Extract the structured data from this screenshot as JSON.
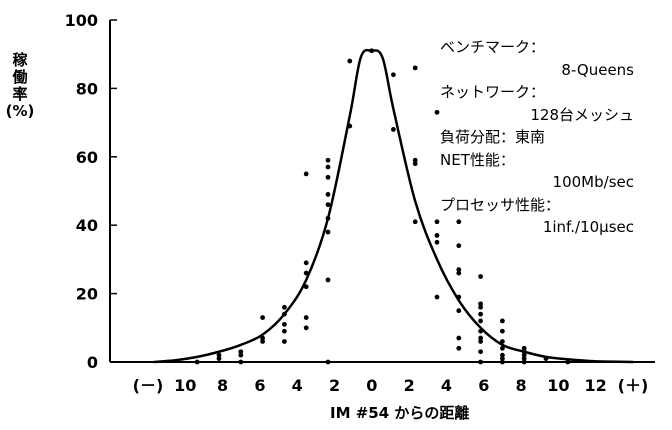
{
  "chart_data": {
    "type": "scatter",
    "title": "",
    "xlabel": "IM #54 からの距離",
    "ylabel": [
      "稼",
      "働",
      "率",
      "(%)"
    ],
    "x_ticks": [
      "(－)",
      "10",
      "8",
      "6",
      "4",
      "2",
      "0",
      "2",
      "4",
      "6",
      "8",
      "10",
      "12",
      "(＋)"
    ],
    "y_ticks": [
      "0",
      "20",
      "40",
      "60",
      "80",
      "100"
    ],
    "x_range": [
      -12,
      13
    ],
    "ylim": [
      0,
      100
    ],
    "grid": false,
    "annotations": [
      {
        "label": "ベンチマーク：",
        "value": "8-Queens"
      },
      {
        "label": "ネットワーク：",
        "value": "128台メッシュ"
      },
      {
        "label": "負荷分配：東南",
        "value": ""
      },
      {
        "label": "NET性能：",
        "value": "100Mb/sec"
      },
      {
        "label": "プロセッサ性能：",
        "value": "1inf./10μsec"
      }
    ],
    "series": [
      {
        "kind": "line",
        "x": [
          -10,
          -9,
          -8,
          -7,
          -6,
          -5,
          -4,
          -3,
          -2,
          -1,
          -0.5,
          0,
          0.5,
          1,
          2,
          3,
          4,
          5,
          6,
          7,
          8,
          9,
          10,
          11,
          12
        ],
        "y": [
          0,
          0.5,
          1.5,
          3,
          5,
          8,
          14,
          24,
          42,
          72,
          89,
          91,
          89,
          74,
          47,
          30,
          18,
          10,
          5,
          3,
          1.5,
          0.8,
          0.3,
          0.1,
          0
        ]
      },
      {
        "kind": "scatter",
        "points": [
          [
            -8,
            0
          ],
          [
            -7,
            1
          ],
          [
            -7,
            2
          ],
          [
            -6,
            0
          ],
          [
            -6,
            2
          ],
          [
            -6,
            3
          ],
          [
            -5,
            6
          ],
          [
            -5,
            7
          ],
          [
            -5,
            13
          ],
          [
            -4,
            6
          ],
          [
            -4,
            9
          ],
          [
            -4,
            11
          ],
          [
            -4,
            14
          ],
          [
            -4,
            16
          ],
          [
            -3,
            10
          ],
          [
            -3,
            13
          ],
          [
            -3,
            22
          ],
          [
            -3,
            26
          ],
          [
            -3,
            29
          ],
          [
            -3,
            55
          ],
          [
            -2,
            0
          ],
          [
            -2,
            24
          ],
          [
            -2,
            38
          ],
          [
            -2,
            42
          ],
          [
            -2,
            46
          ],
          [
            -2,
            49
          ],
          [
            -2,
            54
          ],
          [
            -2,
            57
          ],
          [
            -2,
            59
          ],
          [
            -1,
            69
          ],
          [
            -1,
            88
          ],
          [
            0,
            91
          ],
          [
            1,
            68
          ],
          [
            1,
            84
          ],
          [
            2,
            41
          ],
          [
            2,
            58
          ],
          [
            2,
            59
          ],
          [
            2,
            86
          ],
          [
            3,
            19
          ],
          [
            3,
            35
          ],
          [
            3,
            37
          ],
          [
            3,
            41
          ],
          [
            3,
            73
          ],
          [
            4,
            4
          ],
          [
            4,
            7
          ],
          [
            4,
            15
          ],
          [
            4,
            19
          ],
          [
            4,
            26
          ],
          [
            4,
            27
          ],
          [
            4,
            34
          ],
          [
            4,
            41
          ],
          [
            5,
            0
          ],
          [
            5,
            3
          ],
          [
            5,
            6
          ],
          [
            5,
            7
          ],
          [
            5,
            9
          ],
          [
            5,
            12
          ],
          [
            5,
            14
          ],
          [
            5,
            16
          ],
          [
            5,
            17
          ],
          [
            5,
            25
          ],
          [
            6,
            0
          ],
          [
            6,
            1
          ],
          [
            6,
            2
          ],
          [
            6,
            4
          ],
          [
            6,
            6
          ],
          [
            6,
            9
          ],
          [
            6,
            12
          ],
          [
            7,
            0
          ],
          [
            7,
            1
          ],
          [
            7,
            2
          ],
          [
            7,
            3
          ],
          [
            7,
            4
          ],
          [
            8,
            1
          ],
          [
            9,
            0
          ]
        ]
      }
    ]
  }
}
